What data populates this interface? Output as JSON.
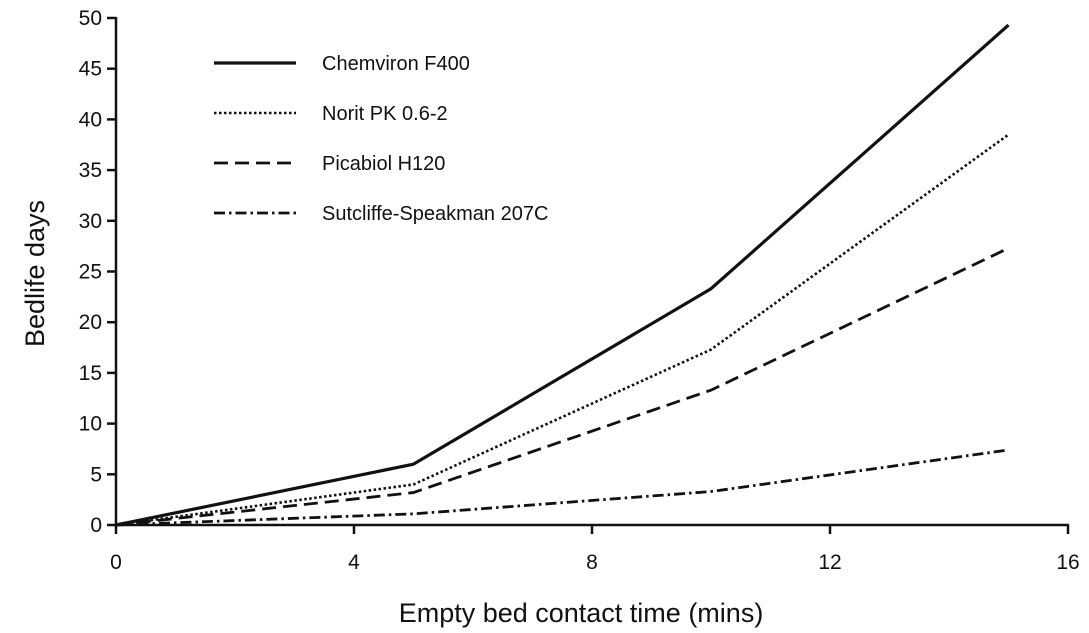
{
  "chart_data": {
    "type": "line",
    "title": "",
    "xlabel": "Empty bed contact time  (mins)",
    "ylabel": "Bedlife days",
    "xlim": [
      0,
      16
    ],
    "ylim": [
      0,
      50
    ],
    "xticks": [
      0,
      4,
      8,
      12,
      16
    ],
    "yticks": [
      0,
      5,
      10,
      15,
      20,
      25,
      30,
      35,
      40,
      45,
      50
    ],
    "grid": false,
    "legend_position": "top-left",
    "series": [
      {
        "name": "Chemviron F400",
        "style": "solid",
        "x": [
          0,
          5,
          10,
          15
        ],
        "y": [
          0,
          6,
          23.3,
          49.3
        ]
      },
      {
        "name": "Norit PK 0.6-2",
        "style": "dotted",
        "x": [
          0,
          5,
          10,
          15
        ],
        "y": [
          0,
          4,
          17.3,
          38.5
        ]
      },
      {
        "name": "Picabiol H120",
        "style": "dashed",
        "x": [
          0,
          5,
          10,
          15
        ],
        "y": [
          0,
          3.2,
          13.3,
          27.3
        ]
      },
      {
        "name": "Sutcliffe-Speakman 207C",
        "style": "dash-dot",
        "x": [
          0,
          5,
          10,
          15
        ],
        "y": [
          0,
          1.1,
          3.3,
          7.4
        ]
      }
    ],
    "colors": {
      "line": "#111111",
      "background": "#ffffff"
    }
  }
}
